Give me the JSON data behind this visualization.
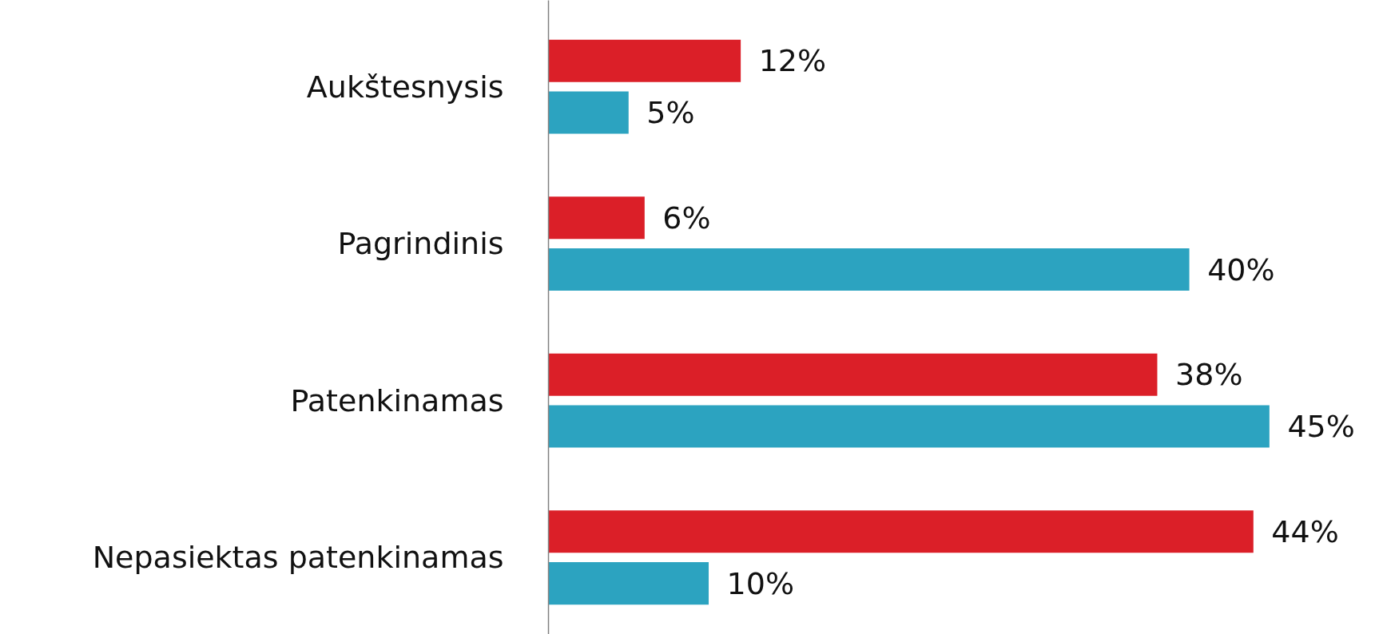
{
  "chart_data": {
    "type": "bar",
    "orientation": "horizontal",
    "categories": [
      "Aukštesnysis",
      "Pagrindinis",
      "Patenkinamas",
      "Nepasiektas patenkinamas"
    ],
    "series": [
      {
        "color": "#db1f28",
        "values": [
          12,
          6,
          38,
          44
        ],
        "value_labels": [
          "12%",
          "6%",
          "38%",
          "44%"
        ]
      },
      {
        "color": "#2ca3c0",
        "values": [
          5,
          40,
          45,
          10
        ],
        "value_labels": [
          "5%",
          "40%",
          "45%",
          "10%"
        ]
      }
    ],
    "grid": false
  }
}
